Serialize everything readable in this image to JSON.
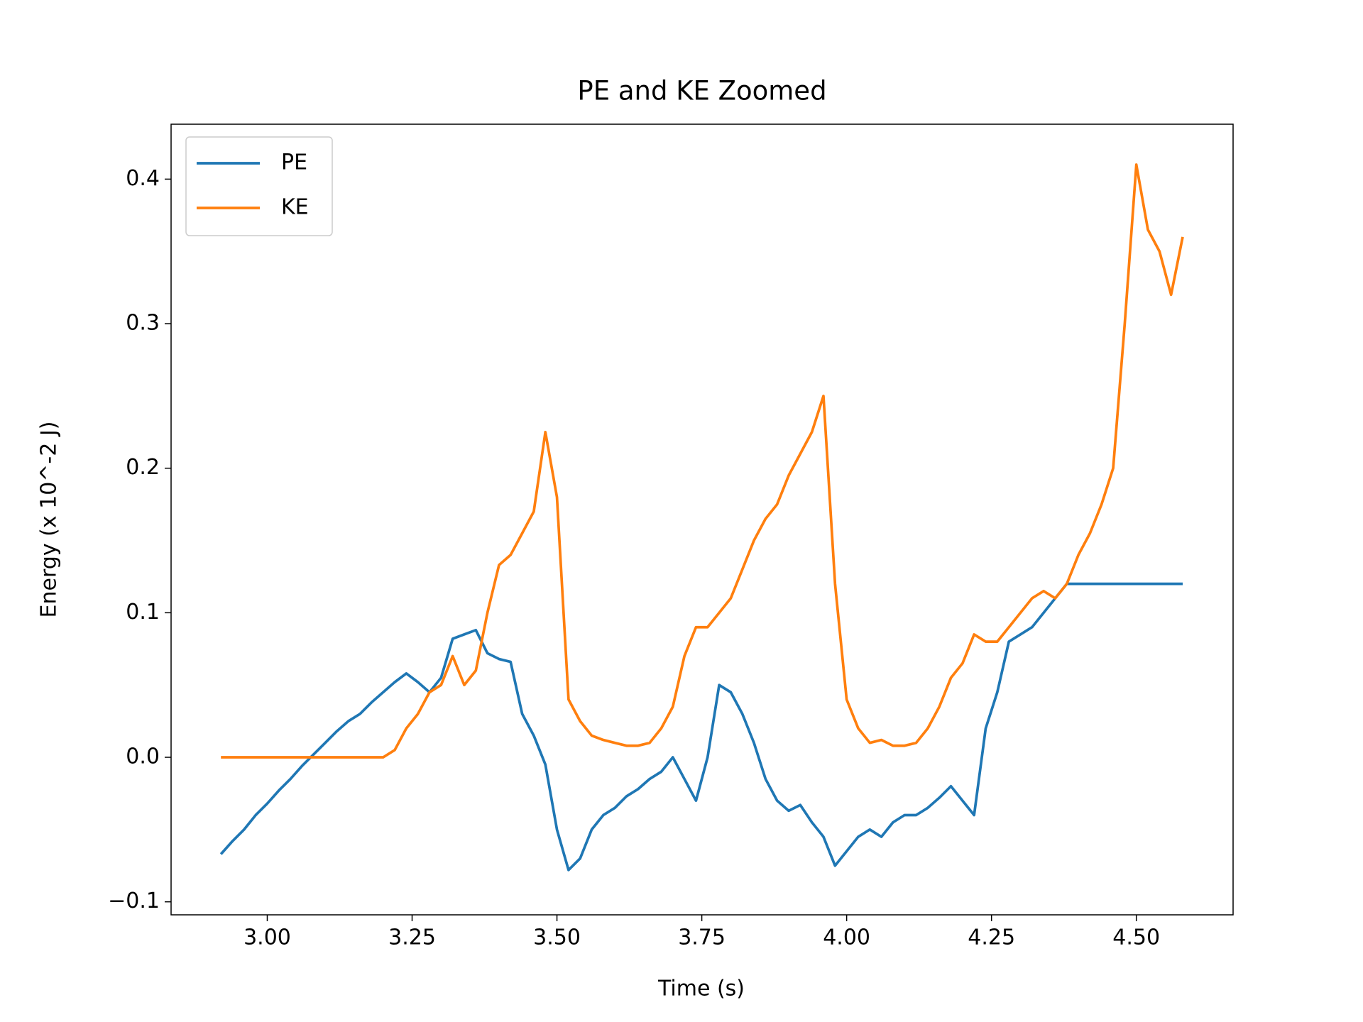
{
  "chart_data": {
    "type": "line",
    "title": "PE and KE Zoomed",
    "x_label": "Time (s)",
    "y_label": "Energy (x 10^-2 J)",
    "x": [
      2.92,
      2.94,
      2.96,
      2.98,
      3.0,
      3.02,
      3.04,
      3.06,
      3.08,
      3.1,
      3.12,
      3.14,
      3.16,
      3.18,
      3.2,
      3.22,
      3.24,
      3.26,
      3.28,
      3.3,
      3.32,
      3.34,
      3.36,
      3.38,
      3.4,
      3.42,
      3.44,
      3.46,
      3.48,
      3.5,
      3.52,
      3.54,
      3.56,
      3.58,
      3.6,
      3.62,
      3.64,
      3.66,
      3.68,
      3.7,
      3.72,
      3.74,
      3.76,
      3.78,
      3.8,
      3.82,
      3.84,
      3.86,
      3.88,
      3.9,
      3.92,
      3.94,
      3.96,
      3.98,
      4.0,
      4.02,
      4.04,
      4.06,
      4.08,
      4.1,
      4.12,
      4.14,
      4.16,
      4.18,
      4.2,
      4.22,
      4.24,
      4.26,
      4.28,
      4.3,
      4.32,
      4.34,
      4.36,
      4.38,
      4.4,
      4.42,
      4.44,
      4.46,
      4.48,
      4.5,
      4.52,
      4.54,
      4.56,
      4.58
    ],
    "series": [
      {
        "name": "PE",
        "color": "#1f77b4",
        "values": [
          -0.067,
          -0.058,
          -0.05,
          -0.04,
          -0.032,
          -0.023,
          -0.015,
          -0.006,
          0.002,
          0.01,
          0.018,
          0.025,
          0.03,
          0.038,
          0.045,
          0.052,
          0.058,
          0.052,
          0.045,
          0.055,
          0.082,
          0.085,
          0.088,
          0.072,
          0.068,
          0.066,
          0.03,
          0.015,
          -0.005,
          -0.05,
          -0.078,
          -0.07,
          -0.05,
          -0.04,
          -0.035,
          -0.027,
          -0.022,
          -0.015,
          -0.01,
          0.0,
          -0.015,
          -0.03,
          0.0,
          0.05,
          0.045,
          0.03,
          0.01,
          -0.015,
          -0.03,
          -0.037,
          -0.033,
          -0.045,
          -0.055,
          -0.075,
          -0.065,
          -0.055,
          -0.05,
          -0.055,
          -0.045,
          -0.04,
          -0.04,
          -0.035,
          -0.028,
          -0.02,
          -0.03,
          -0.04,
          0.02,
          0.045,
          0.08,
          0.085,
          0.09,
          0.1,
          0.11,
          0.12,
          0.12,
          0.12,
          0.12,
          0.12,
          0.12,
          0.12,
          0.12,
          0.12,
          0.12,
          0.12
        ]
      },
      {
        "name": "KE",
        "color": "#ff7f0e",
        "values": [
          0,
          0,
          0,
          0,
          0,
          0,
          0,
          0,
          0,
          0,
          0,
          0,
          0,
          0,
          0,
          0.005,
          0.02,
          0.03,
          0.045,
          0.05,
          0.07,
          0.05,
          0.06,
          0.1,
          0.133,
          0.14,
          0.155,
          0.17,
          0.225,
          0.18,
          0.04,
          0.025,
          0.015,
          0.012,
          0.01,
          0.008,
          0.008,
          0.01,
          0.02,
          0.035,
          0.07,
          0.09,
          0.09,
          0.1,
          0.11,
          0.13,
          0.15,
          0.165,
          0.175,
          0.195,
          0.21,
          0.225,
          0.25,
          0.12,
          0.04,
          0.02,
          0.01,
          0.012,
          0.008,
          0.008,
          0.01,
          0.02,
          0.035,
          0.055,
          0.065,
          0.085,
          0.08,
          0.08,
          0.09,
          0.1,
          0.11,
          0.115,
          0.11,
          0.12,
          0.14,
          0.155,
          0.175,
          0.2,
          0.3,
          0.41,
          0.365,
          0.35,
          0.32,
          0.36
        ]
      }
    ],
    "xlim": [
      2.834,
      4.667
    ],
    "ylim": [
      -0.109,
      0.438
    ],
    "xticks": [
      {
        "value": 3,
        "label": "3.00"
      },
      {
        "value": 3.25,
        "label": "3.25"
      },
      {
        "value": 3.5,
        "label": "3.50"
      },
      {
        "value": 3.75,
        "label": "3.75"
      },
      {
        "value": 4,
        "label": "4.00"
      },
      {
        "value": 4.25,
        "label": "4.25"
      },
      {
        "value": 4.5,
        "label": "4.50"
      }
    ],
    "yticks": [
      {
        "value": -0.1,
        "label": "−0.1"
      },
      {
        "value": 0,
        "label": "0.0"
      },
      0.1,
      0.2,
      0.3,
      0.4
    ],
    "grid": false,
    "legend": "upper left"
  }
}
